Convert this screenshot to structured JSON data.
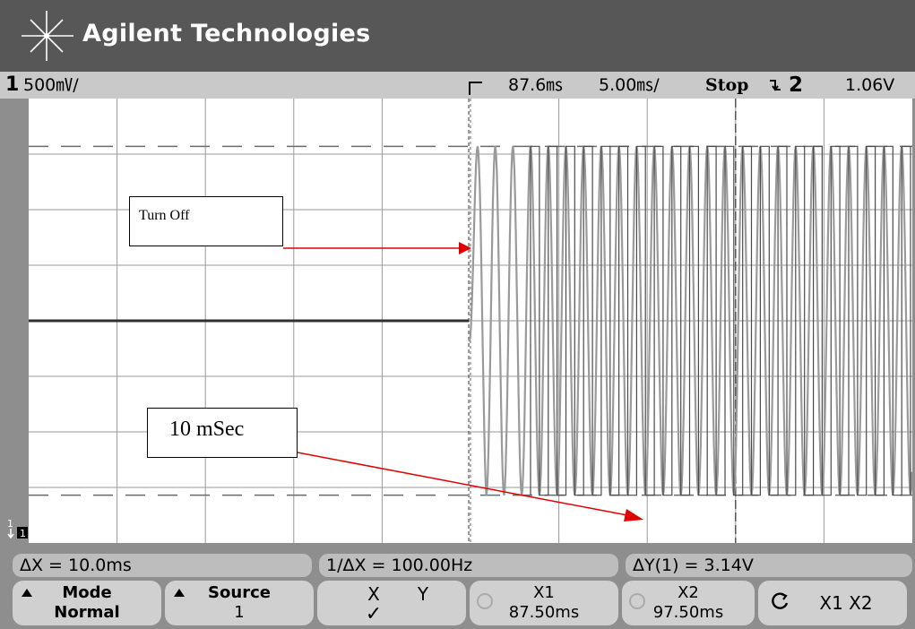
{
  "header": {
    "brand": "Agilent Technologies"
  },
  "status": {
    "channel": "1",
    "volts_per_div": "500㎷/",
    "trigger_delay": "87.6㎳",
    "time_per_div": "5.00㎳/",
    "run_state": "Stop",
    "trigger_source": "2",
    "trigger_level": "1.06V"
  },
  "annotations": {
    "turn_off": "Turn Off",
    "ten_ms": "10 mSec"
  },
  "markers": {
    "ground_channel": "1",
    "ground_badge": "1"
  },
  "measurements": {
    "delta_x": "ΔX = 10.0ms",
    "inverse_delta_x": "1/ΔX = 100.00Hz",
    "delta_y": "ΔY(1) = 3.14V"
  },
  "softkeys": {
    "mode_label": "Mode",
    "mode_value": "Normal",
    "source_label": "Source",
    "source_value": "1",
    "x_label": "X",
    "y_label": "Y",
    "x_check": "✓",
    "x1_label": "X1",
    "x1_value": "87.50ms",
    "x2_label": "X2",
    "x2_value": "97.50ms",
    "x1x2_label": "X1  X2"
  },
  "colors": {
    "banner": "#575757",
    "screen": "#ffffff",
    "trace": "#9a9a9a",
    "arrow": "#e00000"
  },
  "chart_data": {
    "type": "line",
    "x_label": "",
    "y_label": "",
    "x_units": "ms",
    "y_units": "mV",
    "xlim": [
      37.6,
      87.6
    ],
    "ylim": [
      -2000,
      2000
    ],
    "x_divisions": 10,
    "y_divisions": 8,
    "cursors": {
      "x1_ms": 87.5,
      "x2_ms": 97.5
    },
    "y_reference_levels_v": [
      1.57,
      -1.57
    ],
    "trigger_level_v": 1.06,
    "series": [
      {
        "segment": "flat",
        "x_ms": [
          37.6,
          62.5
        ],
        "y_mv": [
          0,
          0
        ]
      },
      {
        "segment": "oscillation",
        "start_ms": 62.5,
        "period_ms": 1.0,
        "envelope_mv_start": 3140,
        "envelope_mv_end": 3140
      }
    ]
  }
}
